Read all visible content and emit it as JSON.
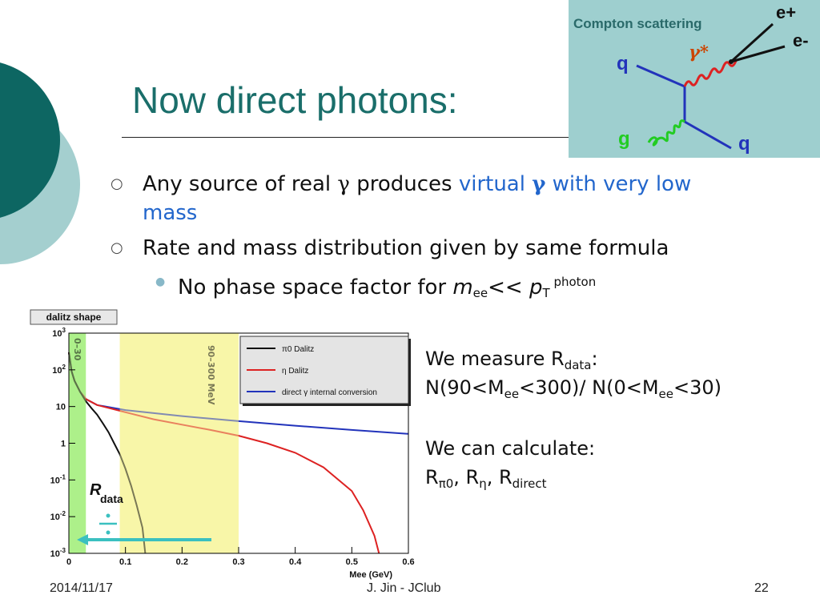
{
  "slide": {
    "title": "Now direct photons:",
    "bullets": [
      {
        "pre": "Any  source of  real ",
        "gamma": "γ",
        "post": " produces ",
        "blue_a": "virtual ",
        "blue_gamma": "γ",
        "blue_b": " with very low mass"
      },
      {
        "text": "Rate and mass distribution given by same formula"
      }
    ],
    "subbullet": {
      "pre": "No phase space factor for ",
      "m": "m",
      "m_sub": "ee",
      "mid": "<< ",
      "p": "p",
      "p_sub": "T",
      "p_sup": " photon"
    },
    "measure": {
      "line1_pre": "We measure R",
      "line1_sub": "data",
      "line1_post": ":",
      "line2_a": "N(90<M",
      "line2_sub1": "ee",
      "line2_b": "<300)/ N(0<M",
      "line2_sub2": "ee",
      "line2_c": "<30)"
    },
    "calculate": {
      "line1": "We can calculate:",
      "r1": "R",
      "r1_sub": "π0",
      "sep1": ", R",
      "r2_sub": "η",
      "sep2": ", R",
      "r3_sub": "direct"
    }
  },
  "feynman": {
    "title": "Compton scattering",
    "q_in": "q",
    "q_out": "q",
    "g": "g",
    "gamma_star": "γ*",
    "e_plus": "e+",
    "e_minus": "e-",
    "colors": {
      "bg": "#9ecfcf",
      "quark": "#2233bb",
      "photon": "#dd2222",
      "gluon": "#22cc22",
      "lepton": "#111111",
      "label": "#2a6a6a",
      "gamma": "#cc4400"
    }
  },
  "chart_data": {
    "type": "line",
    "title": "dalitz shape",
    "xlabel": "Mee (GeV)",
    "ylabel": "",
    "xlim": [
      0,
      0.6
    ],
    "ylim": [
      0.001,
      1000
    ],
    "yscale": "log",
    "x_ticks": [
      "0",
      "0.1",
      "0.2",
      "0.3",
      "0.4",
      "0.5",
      "0.6"
    ],
    "y_ticks": [
      "10^-3",
      "10^-2",
      "10^-1",
      "1",
      "10",
      "10^2",
      "10^3"
    ],
    "bands": [
      {
        "label": "0–30",
        "range": [
          0,
          0.03
        ],
        "color": "#aef08a"
      },
      {
        "label": "90–300 MeV",
        "range": [
          0.09,
          0.3
        ],
        "color": "#f8f6a8"
      }
    ],
    "annotation": "Rdata",
    "legend_position": "top-right",
    "series": [
      {
        "name": "π0 Dalitz",
        "color": "#111111",
        "points": [
          [
            0.0,
            300
          ],
          [
            0.005,
            90
          ],
          [
            0.01,
            50
          ],
          [
            0.02,
            25
          ],
          [
            0.03,
            14
          ],
          [
            0.04,
            9
          ],
          [
            0.05,
            6
          ],
          [
            0.06,
            3.5
          ],
          [
            0.07,
            2
          ],
          [
            0.08,
            1
          ],
          [
            0.09,
            0.5
          ],
          [
            0.1,
            0.2
          ],
          [
            0.11,
            0.07
          ],
          [
            0.12,
            0.02
          ],
          [
            0.13,
            0.005
          ],
          [
            0.135,
            0.001
          ]
        ]
      },
      {
        "name": "η Dalitz",
        "color": "#dd2222",
        "points": [
          [
            0.0,
            300
          ],
          [
            0.005,
            90
          ],
          [
            0.01,
            50
          ],
          [
            0.02,
            25
          ],
          [
            0.03,
            16
          ],
          [
            0.05,
            11
          ],
          [
            0.1,
            7
          ],
          [
            0.15,
            4.5
          ],
          [
            0.2,
            3.2
          ],
          [
            0.25,
            2.3
          ],
          [
            0.3,
            1.6
          ],
          [
            0.35,
            1.0
          ],
          [
            0.4,
            0.55
          ],
          [
            0.45,
            0.22
          ],
          [
            0.5,
            0.05
          ],
          [
            0.52,
            0.015
          ],
          [
            0.54,
            0.003
          ],
          [
            0.548,
            0.001
          ]
        ]
      },
      {
        "name": "direct γ internal conversion",
        "color": "#2233bb",
        "points": [
          [
            0.0,
            300
          ],
          [
            0.005,
            90
          ],
          [
            0.01,
            50
          ],
          [
            0.02,
            25
          ],
          [
            0.03,
            16
          ],
          [
            0.05,
            11
          ],
          [
            0.1,
            8
          ],
          [
            0.2,
            5.5
          ],
          [
            0.3,
            4
          ],
          [
            0.4,
            3
          ],
          [
            0.5,
            2.3
          ],
          [
            0.6,
            1.8
          ]
        ]
      }
    ]
  },
  "footer": {
    "date": "2014/11/17",
    "author": "J. Jin - JClub",
    "page": "22"
  }
}
